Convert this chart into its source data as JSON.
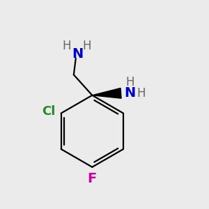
{
  "bg_color": "#ebebeb",
  "bond_color": "#000000",
  "bond_lw": 1.6,
  "atom_colors": {
    "N": "#0000cc",
    "Cl": "#228B22",
    "F": "#cc00aa",
    "C": "#000000",
    "H": "#666666"
  },
  "font_size_main": 14,
  "font_size_H": 12,
  "font_size_Cl": 13
}
